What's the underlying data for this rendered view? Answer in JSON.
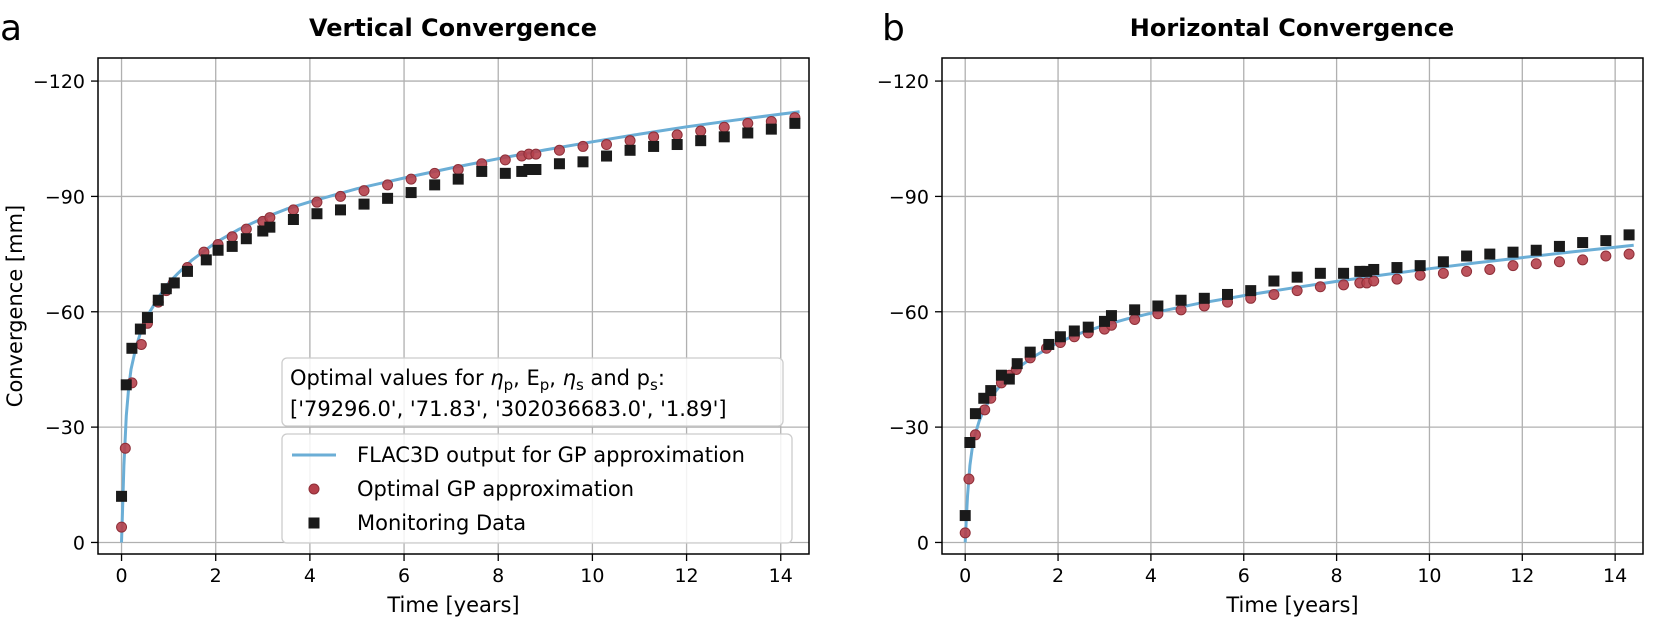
{
  "chart_data": [
    {
      "type": "scatter",
      "panel_letter": "a",
      "title": "Vertical Convergence",
      "xlabel": "Time [years]",
      "ylabel": "Convergence [mm]",
      "xlim": [
        -0.5,
        14.6
      ],
      "ylim": [
        3,
        -126
      ],
      "y_inverted": true,
      "xticks": [
        0,
        2,
        4,
        6,
        8,
        10,
        12,
        14
      ],
      "xtick_labels": [
        "0",
        "2",
        "4",
        "6",
        "8",
        "10",
        "12",
        "14"
      ],
      "yticks": [
        0,
        -30,
        -60,
        -90,
        -120
      ],
      "ytick_labels": [
        "0",
        "−30",
        "−60",
        "−90",
        "−120"
      ],
      "grid": true,
      "legend_placement": "lower right",
      "annotation": {
        "line1_parts": [
          "Optimal values for ",
          "η",
          "p",
          ", E",
          "p",
          ", ",
          "η",
          "s",
          " and p",
          "s",
          ":"
        ],
        "line2": "['79296.0', '71.83', '302036683.0', '1.89']"
      },
      "series": [
        {
          "name": "FLAC3D output for GP approximation",
          "kind": "line",
          "color": "#6baed6",
          "x": [
            0,
            0.02,
            0.05,
            0.1,
            0.15,
            0.2,
            0.3,
            0.4,
            0.5,
            0.6,
            0.8,
            1.0,
            1.2,
            1.5,
            2.0,
            2.5,
            3.0,
            3.5,
            4.0,
            5.0,
            6.0,
            7.0,
            8.0,
            9.0,
            10.0,
            11.0,
            12.0,
            13.0,
            14.0,
            14.4
          ],
          "y": [
            0,
            -8,
            -20,
            -33,
            -40,
            -45,
            -50.5,
            -54.5,
            -57.5,
            -60,
            -64,
            -67.5,
            -70,
            -73.5,
            -78,
            -81.5,
            -84.3,
            -86.7,
            -88.6,
            -92,
            -94.8,
            -97.4,
            -99.8,
            -102.1,
            -104.2,
            -106.2,
            -108.1,
            -109.8,
            -111.4,
            -112
          ]
        },
        {
          "name": "Optimal GP approximation",
          "kind": "circle",
          "color": "#b5404b",
          "x": [
            0,
            0.08,
            0.22,
            0.42,
            0.55,
            0.78,
            0.95,
            1.1,
            1.4,
            1.75,
            2.05,
            2.35,
            2.65,
            3.0,
            3.15,
            3.65,
            4.15,
            4.65,
            5.15,
            5.65,
            6.15,
            6.65,
            7.15,
            7.65,
            8.15,
            8.5,
            8.65,
            8.8,
            9.3,
            9.8,
            10.3,
            10.8,
            11.3,
            11.8,
            12.3,
            12.8,
            13.3,
            13.8,
            14.3
          ],
          "y": [
            -4,
            -24.5,
            -41.5,
            -51.5,
            -57,
            -62.5,
            -65.5,
            -67.5,
            -71.5,
            -75.5,
            -77.5,
            -79.5,
            -81.5,
            -83.5,
            -84.5,
            -86.5,
            -88.5,
            -90,
            -91.5,
            -93,
            -94.5,
            -96,
            -97,
            -98.5,
            -99.5,
            -100.5,
            -101,
            -101,
            -102,
            -103,
            -103.5,
            -104.5,
            -105.5,
            -106,
            -107,
            -108,
            -109,
            -109.5,
            -110.5
          ]
        },
        {
          "name": "Monitoring Data",
          "kind": "square",
          "color": "#1a1a1a",
          "x": [
            0,
            0.1,
            0.22,
            0.4,
            0.55,
            0.78,
            0.95,
            1.12,
            1.4,
            1.8,
            2.05,
            2.35,
            2.65,
            3.0,
            3.15,
            3.65,
            4.15,
            4.65,
            5.15,
            5.65,
            6.15,
            6.65,
            7.15,
            7.65,
            8.15,
            8.5,
            8.65,
            8.8,
            9.3,
            9.8,
            10.3,
            10.8,
            11.3,
            11.8,
            12.3,
            12.8,
            13.3,
            13.8,
            14.3
          ],
          "y": [
            -12,
            -41,
            -50.5,
            -55.5,
            -58.5,
            -63,
            -66,
            -67.5,
            -70.5,
            -73.5,
            -76,
            -77,
            -79,
            -81,
            -82,
            -84,
            -85.5,
            -86.5,
            -88,
            -89.5,
            -91,
            -93,
            -94.5,
            -96.5,
            -96,
            -96.5,
            -97,
            -97,
            -98.5,
            -99,
            -100.5,
            -102,
            -103,
            -103.5,
            -104.5,
            -105.5,
            -106.5,
            -107.5,
            -109
          ]
        }
      ]
    },
    {
      "type": "scatter",
      "panel_letter": "b",
      "title": "Horizontal Convergence",
      "xlabel": "Time [years]",
      "ylabel": "",
      "xlim": [
        -0.5,
        14.6
      ],
      "ylim": [
        3,
        -126
      ],
      "y_inverted": true,
      "xticks": [
        0,
        2,
        4,
        6,
        8,
        10,
        12,
        14
      ],
      "xtick_labels": [
        "0",
        "2",
        "4",
        "6",
        "8",
        "10",
        "12",
        "14"
      ],
      "yticks": [
        0,
        -30,
        -60,
        -90,
        -120
      ],
      "ytick_labels": [
        "0",
        "−30",
        "−60",
        "−90",
        "−120"
      ],
      "grid": true,
      "series": [
        {
          "name": "FLAC3D output for GP approximation",
          "kind": "line",
          "color": "#6baed6",
          "x": [
            0,
            0.02,
            0.05,
            0.1,
            0.15,
            0.2,
            0.3,
            0.4,
            0.5,
            0.6,
            0.8,
            1.0,
            1.2,
            1.5,
            2.0,
            2.5,
            3.0,
            3.5,
            4.0,
            5.0,
            6.0,
            7.0,
            8.0,
            9.0,
            10.0,
            11.0,
            12.0,
            13.0,
            14.0,
            14.4
          ],
          "y": [
            0,
            -5,
            -12,
            -20,
            -24.5,
            -27.5,
            -31.5,
            -34.5,
            -36.5,
            -38.5,
            -41.5,
            -44,
            -46,
            -48.5,
            -52,
            -54.5,
            -56.5,
            -58.2,
            -59.6,
            -62.1,
            -64.2,
            -66.1,
            -67.9,
            -69.6,
            -71.2,
            -72.7,
            -74.1,
            -75.5,
            -76.8,
            -77.3
          ]
        },
        {
          "name": "Optimal GP approximation",
          "kind": "circle",
          "color": "#b5404b",
          "x": [
            0,
            0.08,
            0.22,
            0.42,
            0.55,
            0.78,
            0.95,
            1.1,
            1.4,
            1.75,
            2.05,
            2.35,
            2.65,
            3.0,
            3.15,
            3.65,
            4.15,
            4.65,
            5.15,
            5.65,
            6.15,
            6.65,
            7.15,
            7.65,
            8.15,
            8.5,
            8.65,
            8.8,
            9.3,
            9.8,
            10.3,
            10.8,
            11.3,
            11.8,
            12.3,
            12.8,
            13.3,
            13.8,
            14.3
          ],
          "y": [
            -2.5,
            -16.5,
            -28,
            -34.5,
            -37.5,
            -41.5,
            -43.5,
            -45,
            -48,
            -50.5,
            -52,
            -53.5,
            -54.5,
            -55.5,
            -56.5,
            -58,
            -59.5,
            -60.5,
            -61.5,
            -62.5,
            -63.5,
            -64.5,
            -65.5,
            -66.5,
            -67,
            -67.5,
            -67.5,
            -68,
            -68.5,
            -69.5,
            -70,
            -70.5,
            -71,
            -72,
            -72.5,
            -73,
            -73.5,
            -74.5,
            -75
          ]
        },
        {
          "name": "Monitoring Data",
          "kind": "square",
          "color": "#1a1a1a",
          "x": [
            0,
            0.1,
            0.22,
            0.4,
            0.55,
            0.78,
            0.95,
            1.12,
            1.4,
            1.8,
            2.05,
            2.35,
            2.65,
            3.0,
            3.15,
            3.65,
            4.15,
            4.65,
            5.15,
            5.65,
            6.15,
            6.65,
            7.15,
            7.65,
            8.15,
            8.5,
            8.65,
            8.8,
            9.3,
            9.8,
            10.3,
            10.8,
            11.3,
            11.8,
            12.3,
            12.8,
            13.3,
            13.8,
            14.3
          ],
          "y": [
            -7,
            -26,
            -33.5,
            -37.5,
            -39.5,
            -43.5,
            -42.5,
            -46.5,
            -49.5,
            -51.5,
            -53.5,
            -55,
            -56,
            -57.5,
            -59,
            -60.5,
            -61.5,
            -63,
            -63.5,
            -64.5,
            -65.5,
            -68,
            -69,
            -70,
            -70,
            -70.5,
            -70.5,
            -71,
            -71.5,
            -72,
            -73,
            -74.5,
            -75,
            -75.5,
            -76,
            -77,
            -78,
            -78.5,
            -80
          ]
        }
      ]
    }
  ]
}
